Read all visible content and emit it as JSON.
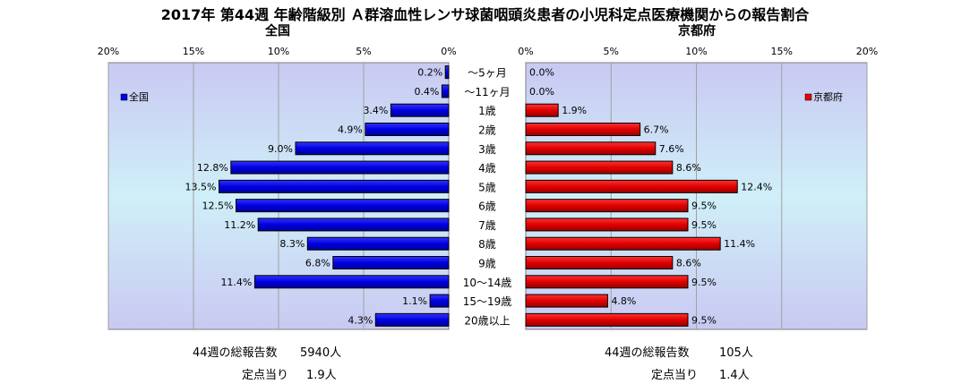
{
  "title": "2017年 第44週 年齢階級別 Ａ群溶血性レンサ球菌咽頭炎患者の小児科定点医療機関からの報告割合",
  "chart_data": {
    "type": "bar",
    "orientation": "horizontal",
    "categories": [
      "～5ヶ月",
      "～11ヶ月",
      "1歳",
      "2歳",
      "3歳",
      "4歳",
      "5歳",
      "6歳",
      "7歳",
      "8歳",
      "9歳",
      "10～14歳",
      "15～19歳",
      "20歳以上"
    ],
    "unit": "%",
    "xlim": [
      0,
      20
    ],
    "grid": true,
    "panels": [
      {
        "title": "全国",
        "legend": "全国",
        "legend_position": "left",
        "direction": "reversed",
        "color": "#0000e6",
        "ticks": [
          "20%",
          "15%",
          "10%",
          "5%",
          "0%"
        ],
        "values": [
          0.2,
          0.4,
          3.4,
          4.9,
          9.0,
          12.8,
          13.5,
          12.5,
          11.2,
          8.3,
          6.8,
          11.4,
          1.1,
          4.3
        ],
        "labels": [
          "0.2%",
          "0.4%",
          "3.4%",
          "4.9%",
          "9.0%",
          "12.8%",
          "13.5%",
          "12.5%",
          "11.2%",
          "8.3%",
          "6.8%",
          "11.4%",
          "1.1%",
          "4.3%"
        ],
        "total_label": "44週の総報告数",
        "total_value": "5940人",
        "per_site_label": "定点当り",
        "per_site_value": "1.9人"
      },
      {
        "title": "京都府",
        "legend": "京都府",
        "legend_position": "right",
        "direction": "normal",
        "color": "#e60000",
        "ticks": [
          "0%",
          "5%",
          "10%",
          "15%",
          "20%"
        ],
        "values": [
          0.0,
          0.0,
          1.9,
          6.7,
          7.6,
          8.6,
          12.4,
          9.5,
          9.5,
          11.4,
          8.6,
          9.5,
          4.8,
          9.5
        ],
        "labels": [
          "0.0%",
          "0.0%",
          "1.9%",
          "6.7%",
          "7.6%",
          "8.6%",
          "12.4%",
          "9.5%",
          "9.5%",
          "11.4%",
          "8.6%",
          "9.5%",
          "4.8%",
          "9.5%"
        ],
        "total_label": "44週の総報告数",
        "total_value": "105人",
        "per_site_label": "定点当り",
        "per_site_value": "1.4人"
      }
    ]
  }
}
